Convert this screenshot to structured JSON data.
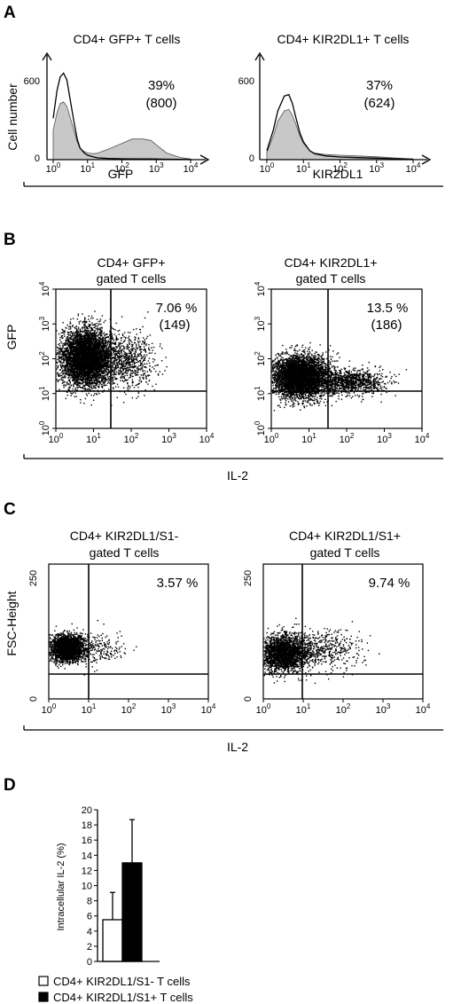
{
  "panels": {
    "A": {
      "label": "A",
      "histograms": [
        {
          "title": "CD4+ GFP+ T cells",
          "xlabel": "GFP",
          "ylabel": "Cell number",
          "yticks": [
            "0",
            "600"
          ],
          "xticks": [
            "10",
            "10",
            "10",
            "10",
            "10"
          ],
          "xexp": [
            "0",
            "1",
            "2",
            "3",
            "4"
          ],
          "percent": "39%",
          "count": "(800)"
        },
        {
          "title": "CD4+ KIR2DL1+ T cells",
          "xlabel": "KIR2DL1",
          "ylabel": "",
          "yticks": [
            "0",
            "600"
          ],
          "xticks": [
            "10",
            "10",
            "10",
            "10",
            "10"
          ],
          "xexp": [
            "0",
            "1",
            "2",
            "3",
            "4"
          ],
          "percent": "37%",
          "count": "(624)"
        }
      ]
    },
    "B": {
      "label": "B",
      "xlabel": "IL-2",
      "ylabel": "GFP",
      "scatters": [
        {
          "title_line1": "CD4+ GFP+",
          "title_line2": "gated T cells",
          "percent": "7.06 %",
          "count": "(149)",
          "xticks": [
            "10",
            "10",
            "10",
            "10",
            "10"
          ],
          "xexp": [
            "0",
            "1",
            "2",
            "3",
            "4"
          ],
          "yticks": [
            "10",
            "10",
            "10",
            "10",
            "10"
          ],
          "yexp": [
            "0",
            "1",
            "2",
            "3",
            "4"
          ]
        },
        {
          "title_line1": "CD4+ KIR2DL1+",
          "title_line2": "gated T cells",
          "percent": "13.5 %",
          "count": "(186)",
          "xticks": [
            "10",
            "10",
            "10",
            "10",
            "10"
          ],
          "xexp": [
            "0",
            "1",
            "2",
            "3",
            "4"
          ],
          "yticks": [
            "10",
            "10",
            "10",
            "10",
            "10"
          ],
          "yexp": [
            "0",
            "1",
            "2",
            "3",
            "4"
          ]
        }
      ]
    },
    "C": {
      "label": "C",
      "xlabel": "IL-2",
      "ylabel": "FSC-Height",
      "scatters": [
        {
          "title_line1": "CD4+ KIR2DL1/S1-",
          "title_line2": "gated T cells",
          "percent": "3.57 %",
          "yticks": [
            "0",
            "250"
          ],
          "xticks": [
            "10",
            "10",
            "10",
            "10",
            "10"
          ],
          "xexp": [
            "0",
            "1",
            "2",
            "3",
            "4"
          ]
        },
        {
          "title_line1": "CD4+ KIR2DL1/S1+",
          "title_line2": "gated T cells",
          "percent": "9.74 %",
          "yticks": [
            "0",
            "250"
          ],
          "xticks": [
            "10",
            "10",
            "10",
            "10",
            "10"
          ],
          "xexp": [
            "0",
            "1",
            "2",
            "3",
            "4"
          ]
        }
      ]
    },
    "D": {
      "label": "D",
      "legend": [
        {
          "text": "CD4+ KIR2DL1/S1- T cells",
          "color": "#ffffff"
        },
        {
          "text": "CD4+ KIR2DL1/S1+ T cells",
          "color": "#000000"
        }
      ]
    }
  },
  "chart_data": [
    {
      "type": "area",
      "panel": "A-left",
      "title": "CD4+ GFP+ T cells",
      "xlabel": "GFP",
      "ylabel": "Cell number",
      "xscale": "log",
      "xlim": [
        1,
        10000
      ],
      "ylim": [
        0,
        600
      ],
      "series": [
        {
          "name": "",
          "style": "outline",
          "x": [
            1,
            1.3,
            1.6,
            2,
            2.5,
            3,
            4,
            5,
            6,
            8,
            10,
            15,
            20,
            40,
            100,
            200,
            400,
            700,
            1000,
            2000,
            5000,
            10000
          ],
          "y": [
            280,
            470,
            560,
            585,
            540,
            430,
            260,
            140,
            80,
            45,
            30,
            18,
            12,
            8,
            6,
            5,
            5,
            5,
            4,
            3,
            2,
            1
          ]
        },
        {
          "name": "",
          "style": "filled",
          "x": [
            1,
            1.3,
            1.6,
            2,
            2.5,
            3,
            4,
            5,
            6,
            8,
            10,
            15,
            20,
            40,
            100,
            200,
            400,
            700,
            1000,
            2000,
            5000,
            10000
          ],
          "y": [
            200,
            320,
            380,
            390,
            360,
            300,
            200,
            120,
            75,
            55,
            45,
            40,
            45,
            70,
            110,
            140,
            140,
            130,
            100,
            45,
            15,
            5
          ]
        }
      ]
    },
    {
      "type": "area",
      "panel": "A-right",
      "title": "CD4+ KIR2DL1+ T cells",
      "xlabel": "KIR2DL1",
      "xscale": "log",
      "xlim": [
        1,
        10000
      ],
      "ylim": [
        0,
        600
      ],
      "series": [
        {
          "name": "",
          "style": "outline",
          "x": [
            1,
            1.5,
            2,
            3,
            4,
            5,
            6,
            8,
            10,
            15,
            20,
            40,
            100,
            300,
            1000,
            3000,
            10000
          ],
          "y": [
            60,
            200,
            330,
            430,
            440,
            380,
            300,
            180,
            120,
            60,
            40,
            25,
            18,
            14,
            10,
            6,
            3
          ]
        },
        {
          "name": "",
          "style": "filled",
          "x": [
            1,
            1.5,
            2,
            3,
            4,
            5,
            6,
            8,
            10,
            15,
            20,
            40,
            100,
            300,
            1000,
            3000,
            10000
          ],
          "y": [
            50,
            160,
            260,
            330,
            340,
            300,
            250,
            160,
            110,
            60,
            45,
            35,
            30,
            25,
            20,
            12,
            5
          ]
        }
      ]
    },
    {
      "type": "scatter",
      "panel": "B-left",
      "title": "CD4+ GFP+ gated T cells",
      "xlabel": "IL-2",
      "ylabel": "GFP",
      "xscale": "log",
      "yscale": "log",
      "xlim": [
        1,
        10000
      ],
      "ylim": [
        1,
        10000
      ],
      "quadrant_gate": {
        "x": 25,
        "y": 10
      },
      "annotation": {
        "quadrant": "upper-right",
        "percent": 7.06,
        "count": 149
      },
      "populations": [
        {
          "center_log": [
            0.8,
            2.05
          ],
          "spread_log": [
            0.33,
            0.4
          ],
          "count": 5200
        },
        {
          "center_log": [
            1.9,
            1.95
          ],
          "spread_log": [
            0.35,
            0.4
          ],
          "count": 700
        }
      ]
    },
    {
      "type": "scatter",
      "panel": "B-right",
      "title": "CD4+ KIR2DL1+ gated T cells",
      "xlabel": "IL-2",
      "ylabel": "GFP",
      "xscale": "log",
      "yscale": "log",
      "xlim": [
        1,
        10000
      ],
      "ylim": [
        1,
        10000
      ],
      "quadrant_gate": {
        "x": 25,
        "y": 10
      },
      "annotation": {
        "quadrant": "upper-right",
        "percent": 13.5,
        "count": 186
      },
      "populations": [
        {
          "center_log": [
            0.75,
            1.5
          ],
          "spread_log": [
            0.38,
            0.3
          ],
          "count": 4500
        },
        {
          "center_log": [
            2.1,
            1.35
          ],
          "spread_log": [
            0.45,
            0.18
          ],
          "count": 1000
        }
      ]
    },
    {
      "type": "scatter",
      "panel": "C-left",
      "title": "CD4+ KIR2DL1/S1- gated T cells",
      "xlabel": "IL-2",
      "ylabel": "FSC-Height",
      "xscale": "log",
      "xlim": [
        1,
        10000
      ],
      "ylim": [
        0,
        250
      ],
      "quadrant_gate": {
        "x": 10,
        "y": 45
      },
      "annotation": {
        "quadrant": "upper-right",
        "percent": 3.57
      },
      "populations": [
        {
          "center": [
            0.45,
            95
          ],
          "spread": [
            0.22,
            12
          ],
          "count": 2500
        },
        {
          "center": [
            1.3,
            92
          ],
          "spread": [
            0.3,
            15
          ],
          "count": 180
        }
      ]
    },
    {
      "type": "scatter",
      "panel": "C-right",
      "title": "CD4+ KIR2DL1/S1+ gated T cells",
      "xlabel": "IL-2",
      "ylabel": "FSC-Height",
      "xscale": "log",
      "xlim": [
        1,
        10000
      ],
      "ylim": [
        0,
        250
      ],
      "quadrant_gate": {
        "x": 8,
        "y": 45
      },
      "annotation": {
        "quadrant": "upper-right",
        "percent": 9.74
      },
      "populations": [
        {
          "center": [
            0.5,
            85
          ],
          "spread": [
            0.3,
            17
          ],
          "count": 2300
        },
        {
          "center": [
            1.5,
            92
          ],
          "spread": [
            0.45,
            18
          ],
          "count": 450
        }
      ]
    },
    {
      "type": "bar",
      "panel": "D",
      "ylabel": "Intracellular IL-2 (%)",
      "ylim": [
        0,
        20
      ],
      "yticks": [
        0,
        2,
        4,
        6,
        8,
        10,
        12,
        14,
        16,
        18,
        20
      ],
      "categories": [
        "CD4+ KIR2DL1/S1- T cells",
        "CD4+ KIR2DL1/S1+ T cells"
      ],
      "values": [
        5.5,
        13.0
      ],
      "errors": [
        3.6,
        5.7
      ],
      "colors": [
        "#ffffff",
        "#000000"
      ]
    }
  ]
}
